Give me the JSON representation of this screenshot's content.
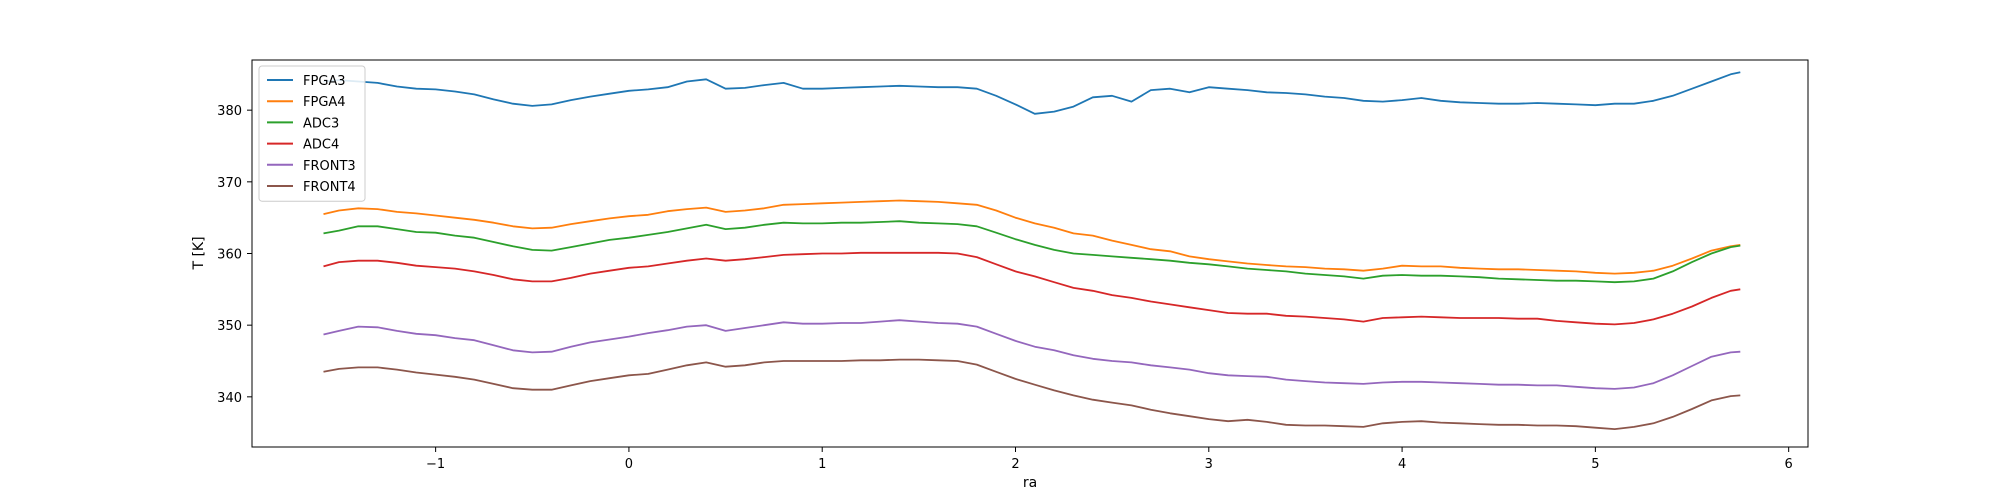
{
  "chart_data": {
    "type": "line",
    "xlabel": "ra",
    "ylabel": "T [K]",
    "xlim": [
      -1.95,
      6.1
    ],
    "ylim": [
      333,
      387
    ],
    "xticks": [
      -1,
      0,
      1,
      2,
      3,
      4,
      5,
      6
    ],
    "yticks": [
      340,
      350,
      360,
      370,
      380
    ],
    "grid": false,
    "legend_position": "top-left",
    "x": [
      -1.58,
      -1.5,
      -1.4,
      -1.3,
      -1.2,
      -1.1,
      -1.0,
      -0.9,
      -0.8,
      -0.7,
      -0.6,
      -0.5,
      -0.4,
      -0.3,
      -0.2,
      -0.1,
      0.0,
      0.1,
      0.2,
      0.3,
      0.4,
      0.5,
      0.6,
      0.7,
      0.8,
      0.9,
      1.0,
      1.1,
      1.2,
      1.3,
      1.4,
      1.5,
      1.6,
      1.7,
      1.8,
      1.9,
      2.0,
      2.1,
      2.2,
      2.3,
      2.4,
      2.5,
      2.6,
      2.7,
      2.8,
      2.9,
      3.0,
      3.1,
      3.2,
      3.3,
      3.4,
      3.5,
      3.6,
      3.7,
      3.8,
      3.9,
      4.0,
      4.1,
      4.2,
      4.3,
      4.4,
      4.5,
      4.6,
      4.7,
      4.8,
      4.9,
      5.0,
      5.1,
      5.2,
      5.3,
      5.4,
      5.5,
      5.6,
      5.7,
      5.75
    ],
    "series": [
      {
        "name": "FPGA3",
        "color": "#1f77b4",
        "values": [
          384.0,
          384.2,
          384.0,
          383.8,
          383.3,
          383.0,
          382.9,
          382.6,
          382.2,
          381.5,
          380.9,
          380.6,
          380.8,
          381.4,
          381.9,
          382.3,
          382.7,
          382.9,
          383.2,
          384.0,
          384.3,
          383.0,
          383.1,
          383.5,
          383.8,
          383.0,
          383.0,
          383.1,
          383.2,
          383.3,
          383.4,
          383.3,
          383.2,
          383.2,
          383.0,
          382.0,
          380.8,
          379.5,
          379.8,
          380.5,
          381.8,
          382.0,
          381.2,
          382.8,
          383.0,
          382.5,
          383.2,
          383.0,
          382.8,
          382.5,
          382.4,
          382.2,
          381.9,
          381.7,
          381.3,
          381.2,
          381.4,
          381.7,
          381.3,
          381.1,
          381.0,
          380.9,
          380.9,
          381.0,
          380.9,
          380.8,
          380.7,
          380.9,
          380.9,
          381.3,
          382.0,
          383.0,
          384.0,
          385.0,
          385.3
        ]
      },
      {
        "name": "FPGA4",
        "color": "#ff7f0e",
        "values": [
          365.5,
          366.0,
          366.3,
          366.2,
          365.8,
          365.6,
          365.3,
          365.0,
          364.7,
          364.3,
          363.8,
          363.5,
          363.6,
          364.1,
          364.5,
          364.9,
          365.2,
          365.4,
          365.9,
          366.2,
          366.4,
          365.8,
          366.0,
          366.3,
          366.8,
          366.9,
          367.0,
          367.1,
          367.2,
          367.3,
          367.4,
          367.3,
          367.2,
          367.0,
          366.8,
          366.0,
          365.0,
          364.2,
          363.6,
          362.8,
          362.5,
          361.8,
          361.2,
          360.6,
          360.3,
          359.6,
          359.2,
          358.9,
          358.6,
          358.4,
          358.2,
          358.1,
          357.9,
          357.8,
          357.6,
          357.9,
          358.3,
          358.2,
          358.2,
          358.0,
          357.9,
          357.8,
          357.8,
          357.7,
          357.6,
          357.5,
          357.3,
          357.2,
          357.3,
          357.6,
          358.3,
          359.3,
          360.4,
          361.0,
          361.2
        ]
      },
      {
        "name": "ADC3",
        "color": "#2ca02c",
        "values": [
          362.8,
          363.2,
          363.8,
          363.8,
          363.4,
          363.0,
          362.9,
          362.5,
          362.2,
          361.6,
          361.0,
          360.5,
          360.4,
          360.9,
          361.4,
          361.9,
          362.2,
          362.6,
          363.0,
          363.5,
          364.0,
          363.4,
          363.6,
          364.0,
          364.3,
          364.2,
          364.2,
          364.3,
          364.3,
          364.4,
          364.5,
          364.3,
          364.2,
          364.1,
          363.8,
          362.9,
          362.0,
          361.2,
          360.5,
          360.0,
          359.8,
          359.6,
          359.4,
          359.2,
          359.0,
          358.7,
          358.5,
          358.2,
          357.9,
          357.7,
          357.5,
          357.2,
          357.0,
          356.8,
          356.5,
          356.9,
          357.0,
          356.9,
          356.9,
          356.8,
          356.7,
          356.5,
          356.4,
          356.3,
          356.2,
          356.2,
          356.1,
          356.0,
          356.1,
          356.5,
          357.5,
          358.8,
          360.0,
          360.9,
          361.1
        ]
      },
      {
        "name": "ADC4",
        "color": "#d62728",
        "values": [
          358.2,
          358.8,
          359.0,
          359.0,
          358.7,
          358.3,
          358.1,
          357.9,
          357.5,
          357.0,
          356.4,
          356.1,
          356.1,
          356.6,
          357.2,
          357.6,
          358.0,
          358.2,
          358.6,
          359.0,
          359.3,
          359.0,
          359.2,
          359.5,
          359.8,
          359.9,
          360.0,
          360.0,
          360.1,
          360.1,
          360.1,
          360.1,
          360.1,
          360.0,
          359.5,
          358.5,
          357.5,
          356.8,
          356.0,
          355.2,
          354.8,
          354.2,
          353.8,
          353.3,
          352.9,
          352.5,
          352.1,
          351.7,
          351.6,
          351.6,
          351.3,
          351.2,
          351.0,
          350.8,
          350.5,
          351.0,
          351.1,
          351.2,
          351.1,
          351.0,
          351.0,
          351.0,
          350.9,
          350.9,
          350.6,
          350.4,
          350.2,
          350.1,
          350.3,
          350.8,
          351.6,
          352.6,
          353.8,
          354.8,
          355.0
        ]
      },
      {
        "name": "FRONT3",
        "color": "#9467bd",
        "values": [
          348.7,
          349.2,
          349.8,
          349.7,
          349.2,
          348.8,
          348.6,
          348.2,
          347.9,
          347.2,
          346.5,
          346.2,
          346.3,
          347.0,
          347.6,
          348.0,
          348.4,
          348.9,
          349.3,
          349.8,
          350.0,
          349.2,
          349.6,
          350.0,
          350.4,
          350.2,
          350.2,
          350.3,
          350.3,
          350.5,
          350.7,
          350.5,
          350.3,
          350.2,
          349.8,
          348.8,
          347.8,
          347.0,
          346.5,
          345.8,
          345.3,
          345.0,
          344.8,
          344.4,
          344.1,
          343.8,
          343.3,
          343.0,
          342.9,
          342.8,
          342.4,
          342.2,
          342.0,
          341.9,
          341.8,
          342.0,
          342.1,
          342.1,
          342.0,
          341.9,
          341.8,
          341.7,
          341.7,
          341.6,
          341.6,
          341.4,
          341.2,
          341.1,
          341.3,
          341.9,
          343.0,
          344.3,
          345.6,
          346.2,
          346.3
        ]
      },
      {
        "name": "FRONT4",
        "color": "#8c564b",
        "values": [
          343.5,
          343.9,
          344.1,
          344.1,
          343.8,
          343.4,
          343.1,
          342.8,
          342.4,
          341.8,
          341.2,
          341.0,
          341.0,
          341.6,
          342.2,
          342.6,
          343.0,
          343.2,
          343.8,
          344.4,
          344.8,
          344.2,
          344.4,
          344.8,
          345.0,
          345.0,
          345.0,
          345.0,
          345.1,
          345.1,
          345.2,
          345.2,
          345.1,
          345.0,
          344.5,
          343.5,
          342.5,
          341.7,
          340.9,
          340.2,
          339.6,
          339.2,
          338.8,
          338.2,
          337.7,
          337.3,
          336.9,
          336.6,
          336.8,
          336.5,
          336.1,
          336.0,
          336.0,
          335.9,
          335.8,
          336.3,
          336.5,
          336.6,
          336.4,
          336.3,
          336.2,
          336.1,
          336.1,
          336.0,
          336.0,
          335.9,
          335.7,
          335.5,
          335.8,
          336.3,
          337.2,
          338.3,
          339.5,
          340.1,
          340.2
        ]
      }
    ]
  }
}
